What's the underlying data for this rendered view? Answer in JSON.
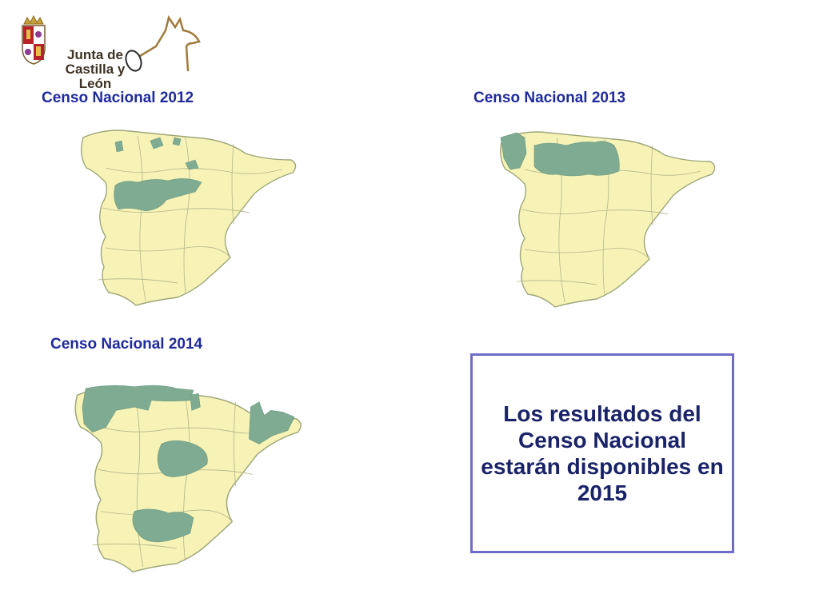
{
  "logo": {
    "line1": "Junta de",
    "line2": "Castilla y León"
  },
  "maps": [
    {
      "title": "Censo Nacional 2012"
    },
    {
      "title": "Censo Nacional 2013"
    },
    {
      "title": "Censo Nacional 2014"
    }
  ],
  "notice": {
    "text": "Los resultados del Censo Nacional estarán disponibles en 2015"
  },
  "colors": {
    "land": "#f7f3b7",
    "highlight": "#7fab92",
    "border": "#9ea679",
    "title": "#1f2a9c",
    "notice_border": "#6f6bc9"
  }
}
